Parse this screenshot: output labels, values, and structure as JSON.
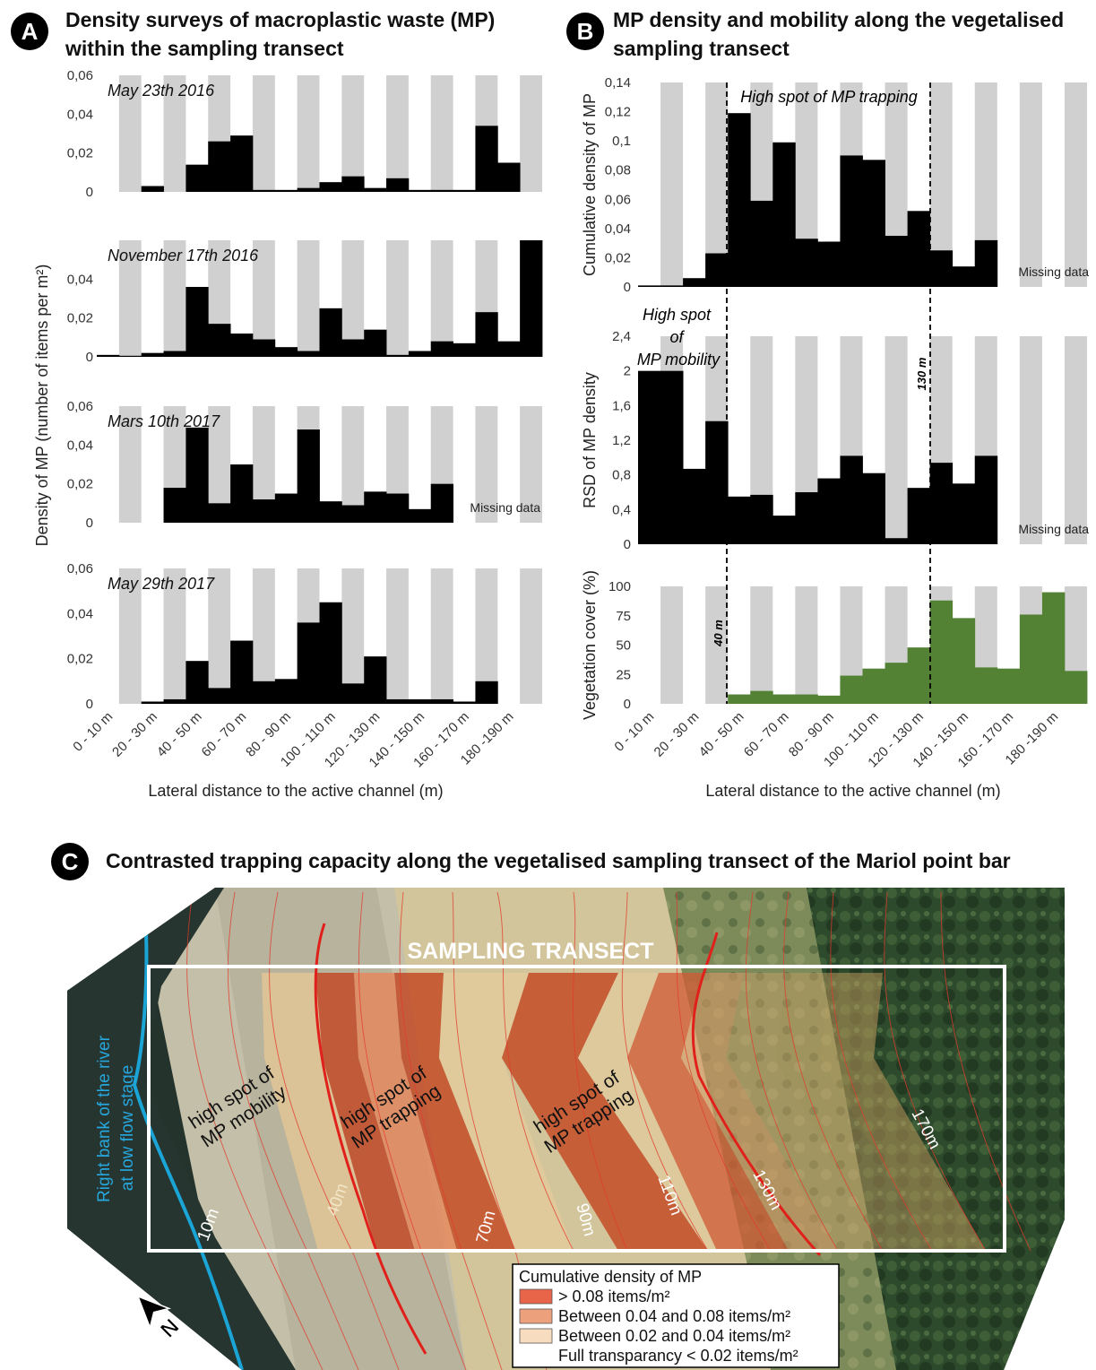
{
  "panel_a": {
    "letter": "A",
    "title_line1": "Density surveys of macroplastic waste (MP)",
    "title_line2": "within the sampling transect",
    "ylabel": "Density of MP (number of items per m²)",
    "xlabel": "Lateral distance to the active channel (m)"
  },
  "panel_b": {
    "letter": "B",
    "title_line1": "MP density and mobility along the vegetalised",
    "title_line2": "sampling transect",
    "xlabel": "Lateral distance to the active channel (m)",
    "trapping_label": "High spot of MP trapping",
    "mobility_label_1": "High spot",
    "mobility_label_2": "of",
    "mobility_label_3": "MP mobility",
    "mark_40": "40 m",
    "mark_130": "130 m"
  },
  "panel_c": {
    "letter": "C",
    "title": "Contrasted trapping capacity along the vegetalised sampling transect of the Mariol point bar",
    "transect_label": "SAMPLING TRANSECT",
    "river_label_1": "Right bank of the river",
    "river_label_2": "at low flow stage",
    "spot1_1": "high spot of",
    "spot1_2": "MP mobility",
    "spot2_1": "high spot of",
    "spot2_2": "MP trapping",
    "spot3_1": "high spot of",
    "spot3_2": "MP trapping",
    "distances": [
      "10m",
      "40m",
      "70m",
      "90m",
      "110m",
      "130m",
      "170m"
    ],
    "north": "N",
    "legend": {
      "title": "Cumulative density of MP",
      "items": [
        {
          "label": "> 0.08 items/m²",
          "color": "#e8654a"
        },
        {
          "label": "Between 0.04 and 0.08 items/m²",
          "color": "#eca07c"
        },
        {
          "label": "Between 0.02 and 0.04 items/m²",
          "color": "#f8dcc0"
        }
      ],
      "note": "Full transparancy < 0.02 items/m²"
    }
  },
  "chart_data": [
    {
      "type": "bar",
      "panel": "A",
      "categories": [
        "0 - 10 m",
        "10 - 20 m",
        "20 - 30 m",
        "30 - 40 m",
        "40 - 50 m",
        "50 - 60 m",
        "60 - 70 m",
        "70 - 80 m",
        "80 - 90 m",
        "90 - 100 m",
        "100 - 110 m",
        "110 - 120 m",
        "120 - 130 m",
        "130 - 140 m",
        "140 - 150 m",
        "150 - 160 m",
        "160 - 170 m",
        "170 - 180 m",
        "180 - 190 m",
        "190 - 200 m"
      ],
      "tick_labels": [
        "0 - 10 m",
        "20 - 30 m",
        "40 - 50 m",
        "60 - 70 m",
        "80 - 90 m",
        "100 - 110 m",
        "120 - 130 m",
        "140 - 150 m",
        "160 - 170 m",
        "180 -190 m"
      ],
      "ylabel": "Density of MP (number of items per m²)",
      "xlabel": "Lateral distance to the active channel (m)",
      "series": [
        {
          "name": "May 23th 2016",
          "ylim": [
            0,
            0.06
          ],
          "yticks": [
            "0",
            "0,02",
            "0,04",
            "0,06"
          ],
          "values": [
            null,
            null,
            0.003,
            null,
            0.014,
            0.026,
            0.029,
            0.001,
            0.001,
            0.002,
            0.005,
            0.008,
            0.002,
            0.007,
            0.001,
            0.001,
            0.001,
            0.034,
            0.015,
            null
          ]
        },
        {
          "name": "November 17th 2016",
          "ylim": [
            0,
            0.06
          ],
          "yticks": [
            "0",
            "0,02",
            "0,04"
          ],
          "values": [
            0.001,
            0.0005,
            0.002,
            0.003,
            0.036,
            0.017,
            0.012,
            0.009,
            0.005,
            0.003,
            0.025,
            0.009,
            0.014,
            0.001,
            0.003,
            0.008,
            0.007,
            0.023,
            0.008,
            0.06
          ]
        },
        {
          "name": "Mars 10th 2017",
          "ylim": [
            0,
            0.06
          ],
          "yticks": [
            "0",
            "0,02",
            "0,04",
            "0,06"
          ],
          "note": "Missing data",
          "values": [
            null,
            null,
            null,
            0.018,
            0.049,
            0.01,
            0.03,
            0.012,
            0.015,
            0.048,
            0.011,
            0.009,
            0.016,
            0.015,
            0.007,
            0.02,
            null,
            null,
            null,
            null
          ]
        },
        {
          "name": "May 29th 2017",
          "ylim": [
            0,
            0.06
          ],
          "yticks": [
            "0",
            "0,02",
            "0,04",
            "0,06"
          ],
          "values": [
            null,
            null,
            0.001,
            0.002,
            0.019,
            0.007,
            0.028,
            0.01,
            0.011,
            0.036,
            0.045,
            0.009,
            0.021,
            0.002,
            0.002,
            0.002,
            0.001,
            0.01,
            null,
            null
          ]
        }
      ]
    },
    {
      "type": "bar",
      "panel": "B",
      "categories": [
        "0 - 10 m",
        "10 - 20 m",
        "20 - 30 m",
        "30 - 40 m",
        "40 - 50 m",
        "50 - 60 m",
        "60 - 70 m",
        "70 - 80 m",
        "80 - 90 m",
        "90 - 100 m",
        "100 - 110 m",
        "110 - 120 m",
        "120 - 130 m",
        "130 - 140 m",
        "140 - 150 m",
        "150 - 160 m",
        "160 - 170 m",
        "170 - 180 m",
        "180 - 190 m",
        "190 - 200 m"
      ],
      "tick_labels": [
        "0 - 10 m",
        "20 - 30 m",
        "40 - 50 m",
        "60 - 70 m",
        "80 - 90 m",
        "100 - 110 m",
        "120 - 130 m",
        "140 - 150 m",
        "160 - 170 m",
        "180 -190 m"
      ],
      "xlabel": "Lateral distance to the active channel (m)",
      "series": [
        {
          "name": "Cumulative density of MP",
          "ylim": [
            0,
            0.14
          ],
          "yticks": [
            "0",
            "0,02",
            "0,04",
            "0,06",
            "0,08",
            "0,1",
            "0,12",
            "0,14"
          ],
          "note": "Missing data",
          "values": [
            0.001,
            0.001,
            0.006,
            0.023,
            0.119,
            0.059,
            0.099,
            0.033,
            0.031,
            0.09,
            0.087,
            0.035,
            0.052,
            0.025,
            0.014,
            0.032,
            null,
            null,
            null,
            null
          ]
        },
        {
          "name": "RSD of MP density",
          "ylim": [
            0,
            2.4
          ],
          "yticks": [
            "0",
            "0,4",
            "0,8",
            "1,2",
            "1,6",
            "2",
            "2,4"
          ],
          "note": "Missing data",
          "values": [
            2.0,
            2.0,
            0.87,
            1.42,
            0.55,
            0.57,
            0.33,
            0.6,
            0.76,
            1.02,
            0.82,
            0.07,
            0.65,
            0.94,
            0.7,
            1.02,
            null,
            null,
            null,
            null
          ]
        },
        {
          "name": "Vegetation cover (%)",
          "ylim": [
            0,
            100
          ],
          "yticks": [
            "0",
            "25",
            "50",
            "75",
            "100"
          ],
          "color": "#548235",
          "values": [
            null,
            null,
            null,
            null,
            8,
            11,
            8,
            8,
            7,
            24,
            30,
            35,
            48,
            88,
            73,
            31,
            30,
            76,
            95,
            28
          ]
        }
      ]
    }
  ]
}
